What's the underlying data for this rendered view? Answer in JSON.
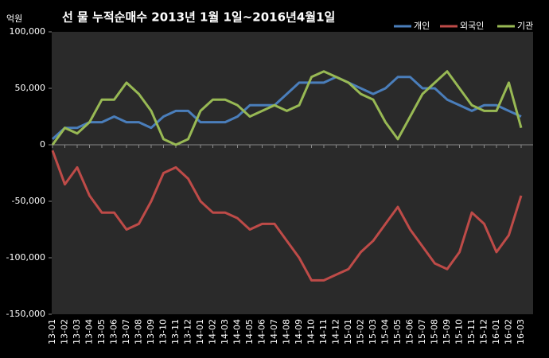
{
  "chart_data": {
    "type": "line",
    "title": "선 물 누적순매수 2013년 1월 1일~2016년4월1일",
    "y_label": "억원",
    "categories": [
      "13-01",
      "13-02",
      "13-03",
      "13-04",
      "13-05",
      "13-06",
      "13-07",
      "13-08",
      "13-09",
      "13-10",
      "13-11",
      "13-12",
      "14-01",
      "14-02",
      "14-03",
      "14-04",
      "14-05",
      "14-06",
      "14-07",
      "14-08",
      "14-09",
      "14-10",
      "14-11",
      "14-12",
      "15-01",
      "15-02",
      "15-03",
      "15-04",
      "15-05",
      "15-06",
      "15-07",
      "15-08",
      "15-09",
      "15-10",
      "15-11",
      "15-12",
      "16-01",
      "16-02",
      "16-03"
    ],
    "series": [
      {
        "name": "개인",
        "color": "#4a7ebb",
        "values": [
          5000,
          15000,
          15000,
          20000,
          20000,
          25000,
          20000,
          20000,
          15000,
          25000,
          30000,
          30000,
          20000,
          20000,
          20000,
          25000,
          35000,
          35000,
          35000,
          45000,
          55000,
          55000,
          55000,
          60000,
          55000,
          50000,
          45000,
          50000,
          60000,
          60000,
          50000,
          50000,
          40000,
          35000,
          30000,
          35000,
          35000,
          30000,
          25000
        ]
      },
      {
        "name": "외국인",
        "color": "#be4b48",
        "values": [
          -5000,
          -35000,
          -20000,
          -45000,
          -60000,
          -60000,
          -75000,
          -70000,
          -50000,
          -25000,
          -20000,
          -30000,
          -50000,
          -60000,
          -60000,
          -65000,
          -75000,
          -70000,
          -70000,
          -85000,
          -100000,
          -120000,
          -120000,
          -115000,
          -110000,
          -95000,
          -85000,
          -70000,
          -55000,
          -75000,
          -90000,
          -105000,
          -110000,
          -95000,
          -60000,
          -70000,
          -95000,
          -80000,
          -45000
        ]
      },
      {
        "name": "기관",
        "color": "#98b954",
        "values": [
          0,
          15000,
          10000,
          20000,
          40000,
          40000,
          55000,
          45000,
          30000,
          5000,
          0,
          5000,
          30000,
          40000,
          40000,
          35000,
          25000,
          30000,
          35000,
          30000,
          35000,
          60000,
          65000,
          60000,
          55000,
          45000,
          40000,
          20000,
          5000,
          25000,
          45000,
          55000,
          65000,
          50000,
          35000,
          30000,
          30000,
          55000,
          15000
        ]
      }
    ],
    "ylim": [
      -150000,
      100000
    ],
    "yticks": [
      {
        "value": -150000,
        "label": "-150,000"
      },
      {
        "value": -100000,
        "label": "-100,000"
      },
      {
        "value": -50000,
        "label": "-50,000"
      },
      0,
      {
        "value": 50000,
        "label": "50,000"
      },
      {
        "value": 100000,
        "label": "100,000"
      }
    ],
    "legend": "top-right"
  }
}
